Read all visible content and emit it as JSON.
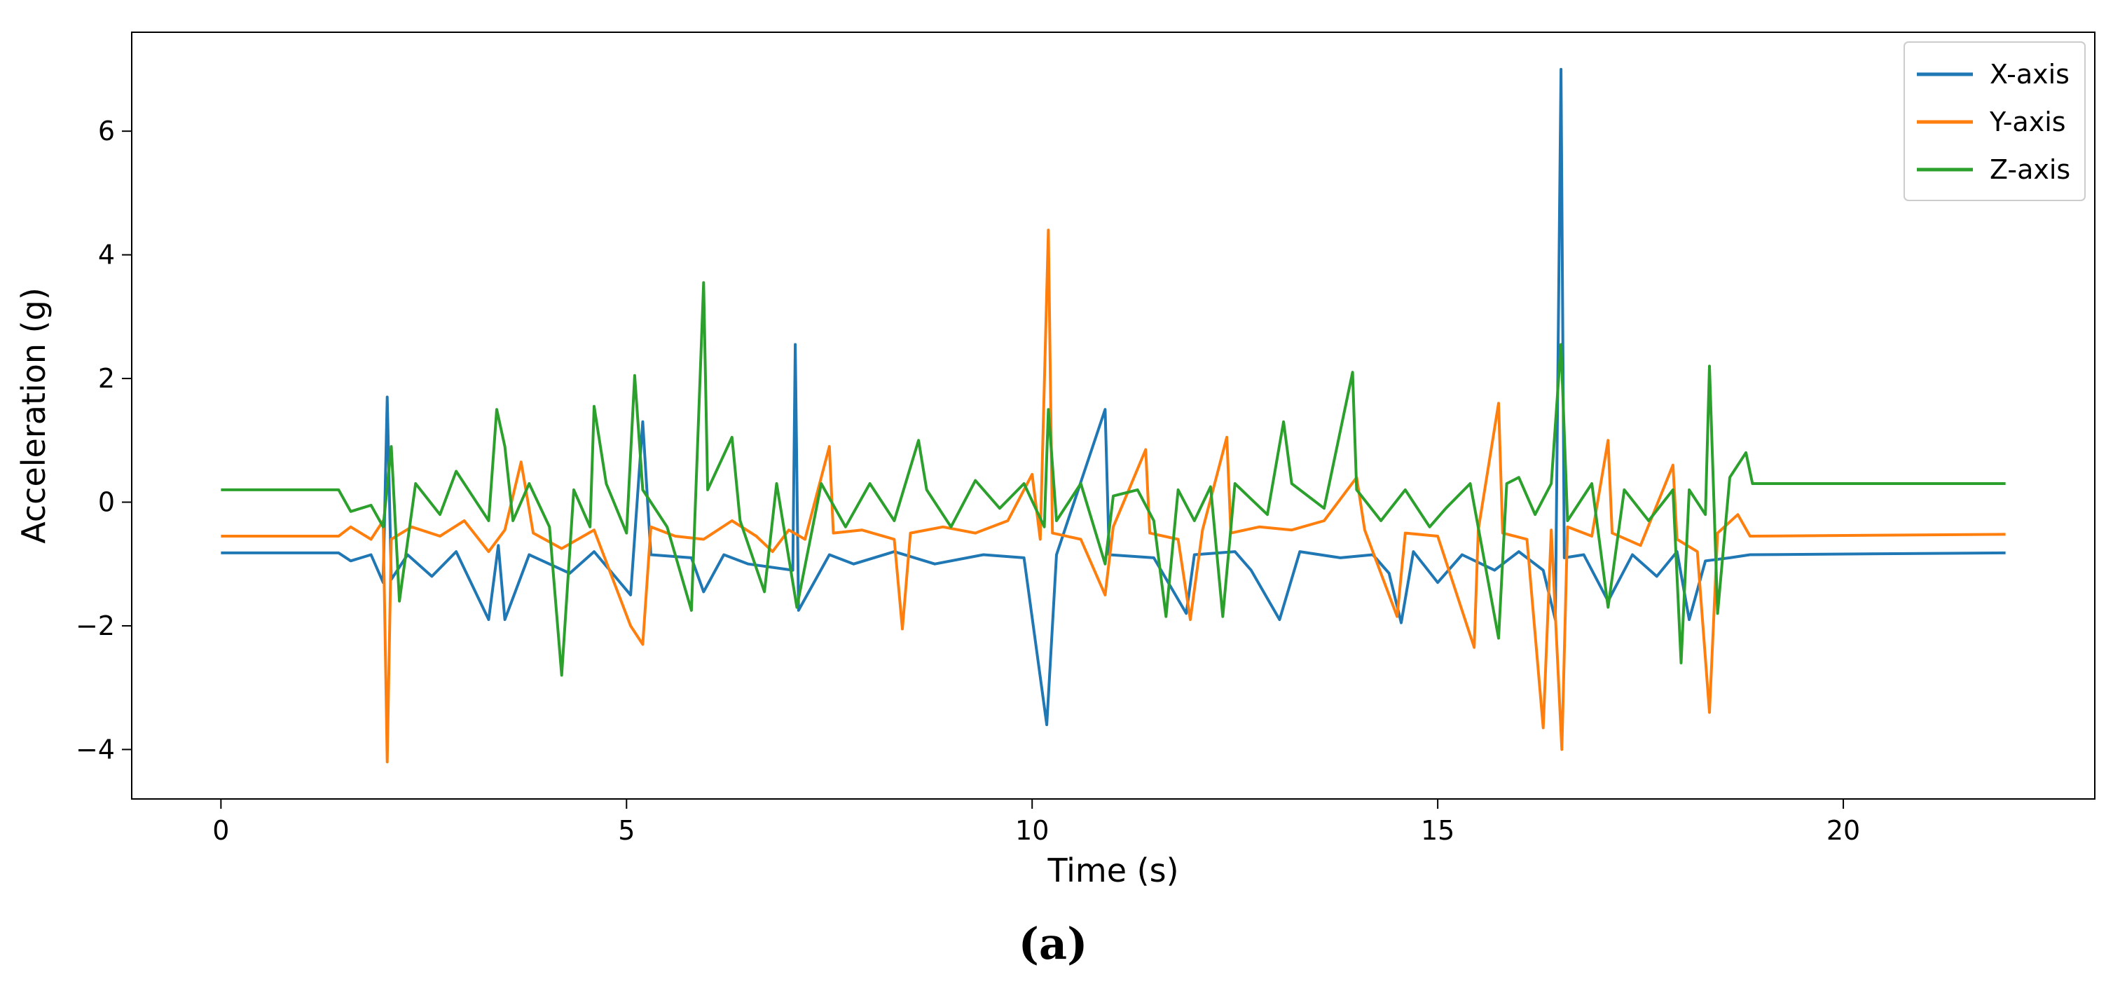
{
  "caption": "(a)",
  "chart_data": {
    "type": "line",
    "title": "",
    "xlabel": "Time (s)",
    "ylabel": "Acceleration (g)",
    "xlim": [
      -1.1,
      23.1
    ],
    "ylim": [
      -4.8,
      7.6
    ],
    "xticks": [
      0,
      5,
      10,
      15,
      20
    ],
    "xtick_labels": [
      "0",
      "5",
      "10",
      "15",
      "20"
    ],
    "yticks": [
      -4,
      -2,
      0,
      2,
      4,
      6
    ],
    "ytick_labels": [
      "−4",
      "−2",
      "0",
      "2",
      "4",
      "6"
    ],
    "grid": false,
    "legend_position": "top-right",
    "series": [
      {
        "name": "X-axis",
        "color": "#1f77b4",
        "points": [
          [
            0,
            -0.82
          ],
          [
            1.45,
            -0.82
          ],
          [
            1.6,
            -0.95
          ],
          [
            1.85,
            -0.85
          ],
          [
            2.0,
            -1.3
          ],
          [
            2.05,
            1.7
          ],
          [
            2.1,
            -1.25
          ],
          [
            2.3,
            -0.85
          ],
          [
            2.6,
            -1.2
          ],
          [
            2.9,
            -0.8
          ],
          [
            3.3,
            -1.9
          ],
          [
            3.42,
            -0.7
          ],
          [
            3.5,
            -1.9
          ],
          [
            3.8,
            -0.85
          ],
          [
            4.3,
            -1.15
          ],
          [
            4.6,
            -0.8
          ],
          [
            5.05,
            -1.5
          ],
          [
            5.2,
            1.3
          ],
          [
            5.3,
            -0.85
          ],
          [
            5.8,
            -0.9
          ],
          [
            5.95,
            -1.45
          ],
          [
            6.2,
            -0.85
          ],
          [
            6.5,
            -1.0
          ],
          [
            7.05,
            -1.1
          ],
          [
            7.08,
            2.55
          ],
          [
            7.12,
            -1.75
          ],
          [
            7.5,
            -0.85
          ],
          [
            7.8,
            -1.0
          ],
          [
            8.3,
            -0.8
          ],
          [
            8.8,
            -1.0
          ],
          [
            9.4,
            -0.85
          ],
          [
            9.9,
            -0.9
          ],
          [
            10.18,
            -3.6
          ],
          [
            10.3,
            -0.85
          ],
          [
            10.9,
            1.5
          ],
          [
            10.95,
            -0.85
          ],
          [
            11.5,
            -0.9
          ],
          [
            11.9,
            -1.8
          ],
          [
            12.0,
            -0.85
          ],
          [
            12.5,
            -0.8
          ],
          [
            12.7,
            -1.1
          ],
          [
            13.05,
            -1.9
          ],
          [
            13.3,
            -0.8
          ],
          [
            13.8,
            -0.9
          ],
          [
            14.2,
            -0.85
          ],
          [
            14.4,
            -1.15
          ],
          [
            14.55,
            -1.95
          ],
          [
            14.7,
            -0.8
          ],
          [
            15.0,
            -1.3
          ],
          [
            15.3,
            -0.85
          ],
          [
            15.7,
            -1.1
          ],
          [
            16.0,
            -0.8
          ],
          [
            16.3,
            -1.1
          ],
          [
            16.45,
            -1.9
          ],
          [
            16.52,
            7.0
          ],
          [
            16.56,
            -0.9
          ],
          [
            16.8,
            -0.85
          ],
          [
            17.1,
            -1.6
          ],
          [
            17.4,
            -0.85
          ],
          [
            17.7,
            -1.2
          ],
          [
            17.95,
            -0.8
          ],
          [
            18.1,
            -1.9
          ],
          [
            18.3,
            -0.95
          ],
          [
            18.6,
            -0.9
          ],
          [
            18.85,
            -0.85
          ],
          [
            22,
            -0.82
          ]
        ]
      },
      {
        "name": "Y-axis",
        "color": "#ff7f0e",
        "points": [
          [
            0,
            -0.55
          ],
          [
            1.45,
            -0.55
          ],
          [
            1.6,
            -0.4
          ],
          [
            1.85,
            -0.6
          ],
          [
            2.0,
            -0.3
          ],
          [
            2.05,
            -4.2
          ],
          [
            2.1,
            -0.6
          ],
          [
            2.35,
            -0.4
          ],
          [
            2.7,
            -0.55
          ],
          [
            3.0,
            -0.3
          ],
          [
            3.3,
            -0.8
          ],
          [
            3.5,
            -0.45
          ],
          [
            3.7,
            0.65
          ],
          [
            3.85,
            -0.5
          ],
          [
            4.2,
            -0.75
          ],
          [
            4.6,
            -0.45
          ],
          [
            5.05,
            -2.0
          ],
          [
            5.2,
            -2.3
          ],
          [
            5.3,
            -0.4
          ],
          [
            5.6,
            -0.55
          ],
          [
            5.95,
            -0.6
          ],
          [
            6.3,
            -0.3
          ],
          [
            6.6,
            -0.55
          ],
          [
            6.8,
            -0.8
          ],
          [
            7.0,
            -0.45
          ],
          [
            7.2,
            -0.6
          ],
          [
            7.5,
            0.9
          ],
          [
            7.55,
            -0.5
          ],
          [
            7.9,
            -0.45
          ],
          [
            8.3,
            -0.6
          ],
          [
            8.4,
            -2.05
          ],
          [
            8.5,
            -0.5
          ],
          [
            8.9,
            -0.4
          ],
          [
            9.3,
            -0.5
          ],
          [
            9.7,
            -0.3
          ],
          [
            10.0,
            0.45
          ],
          [
            10.1,
            -0.6
          ],
          [
            10.2,
            4.4
          ],
          [
            10.25,
            -0.5
          ],
          [
            10.6,
            -0.6
          ],
          [
            10.9,
            -1.5
          ],
          [
            11.0,
            -0.4
          ],
          [
            11.4,
            0.85
          ],
          [
            11.45,
            -0.5
          ],
          [
            11.8,
            -0.6
          ],
          [
            11.95,
            -1.9
          ],
          [
            12.1,
            -0.45
          ],
          [
            12.4,
            1.05
          ],
          [
            12.45,
            -0.5
          ],
          [
            12.8,
            -0.4
          ],
          [
            13.2,
            -0.45
          ],
          [
            13.6,
            -0.3
          ],
          [
            14.0,
            0.4
          ],
          [
            14.1,
            -0.45
          ],
          [
            14.5,
            -1.85
          ],
          [
            14.6,
            -0.5
          ],
          [
            15.0,
            -0.55
          ],
          [
            15.45,
            -2.35
          ],
          [
            15.5,
            -0.45
          ],
          [
            15.75,
            1.6
          ],
          [
            15.8,
            -0.5
          ],
          [
            16.1,
            -0.6
          ],
          [
            16.3,
            -3.65
          ],
          [
            16.4,
            -0.45
          ],
          [
            16.53,
            -4.0
          ],
          [
            16.6,
            -0.4
          ],
          [
            16.9,
            -0.55
          ],
          [
            17.1,
            1.0
          ],
          [
            17.15,
            -0.5
          ],
          [
            17.5,
            -0.7
          ],
          [
            17.9,
            0.6
          ],
          [
            17.95,
            -0.6
          ],
          [
            18.2,
            -0.8
          ],
          [
            18.35,
            -3.4
          ],
          [
            18.45,
            -0.5
          ],
          [
            18.7,
            -0.2
          ],
          [
            18.85,
            -0.55
          ],
          [
            22,
            -0.52
          ]
        ]
      },
      {
        "name": "Z-axis",
        "color": "#2ca02c",
        "points": [
          [
            0,
            0.2
          ],
          [
            1.45,
            0.2
          ],
          [
            1.6,
            -0.15
          ],
          [
            1.85,
            -0.05
          ],
          [
            2.0,
            -0.4
          ],
          [
            2.1,
            0.9
          ],
          [
            2.2,
            -1.6
          ],
          [
            2.4,
            0.3
          ],
          [
            2.7,
            -0.2
          ],
          [
            2.9,
            0.5
          ],
          [
            3.1,
            0.1
          ],
          [
            3.3,
            -0.3
          ],
          [
            3.4,
            1.5
          ],
          [
            3.5,
            0.9
          ],
          [
            3.6,
            -0.3
          ],
          [
            3.8,
            0.3
          ],
          [
            4.05,
            -0.4
          ],
          [
            4.2,
            -2.8
          ],
          [
            4.35,
            0.2
          ],
          [
            4.55,
            -0.4
          ],
          [
            4.6,
            1.55
          ],
          [
            4.75,
            0.3
          ],
          [
            5.0,
            -0.5
          ],
          [
            5.1,
            2.05
          ],
          [
            5.2,
            0.2
          ],
          [
            5.5,
            -0.4
          ],
          [
            5.8,
            -1.75
          ],
          [
            5.95,
            3.55
          ],
          [
            6.0,
            0.2
          ],
          [
            6.3,
            1.05
          ],
          [
            6.4,
            -0.3
          ],
          [
            6.7,
            -1.45
          ],
          [
            6.85,
            0.3
          ],
          [
            7.1,
            -1.7
          ],
          [
            7.4,
            0.3
          ],
          [
            7.7,
            -0.4
          ],
          [
            8.0,
            0.3
          ],
          [
            8.3,
            -0.3
          ],
          [
            8.6,
            1.0
          ],
          [
            8.7,
            0.2
          ],
          [
            9.0,
            -0.4
          ],
          [
            9.3,
            0.35
          ],
          [
            9.6,
            -0.1
          ],
          [
            9.9,
            0.3
          ],
          [
            10.15,
            -0.4
          ],
          [
            10.2,
            1.5
          ],
          [
            10.3,
            -0.3
          ],
          [
            10.6,
            0.3
          ],
          [
            10.9,
            -1.0
          ],
          [
            11.0,
            0.1
          ],
          [
            11.3,
            0.2
          ],
          [
            11.5,
            -0.3
          ],
          [
            11.65,
            -1.85
          ],
          [
            11.8,
            0.2
          ],
          [
            12.0,
            -0.3
          ],
          [
            12.2,
            0.25
          ],
          [
            12.35,
            -1.85
          ],
          [
            12.5,
            0.3
          ],
          [
            12.9,
            -0.2
          ],
          [
            13.1,
            1.3
          ],
          [
            13.2,
            0.3
          ],
          [
            13.6,
            -0.1
          ],
          [
            13.95,
            2.1
          ],
          [
            14.0,
            0.2
          ],
          [
            14.3,
            -0.3
          ],
          [
            14.6,
            0.2
          ],
          [
            14.9,
            -0.4
          ],
          [
            15.1,
            -0.1
          ],
          [
            15.4,
            0.3
          ],
          [
            15.75,
            -2.2
          ],
          [
            15.85,
            0.3
          ],
          [
            16.0,
            0.4
          ],
          [
            16.2,
            -0.2
          ],
          [
            16.4,
            0.3
          ],
          [
            16.52,
            2.55
          ],
          [
            16.6,
            -0.3
          ],
          [
            16.9,
            0.3
          ],
          [
            17.1,
            -1.7
          ],
          [
            17.3,
            0.2
          ],
          [
            17.6,
            -0.3
          ],
          [
            17.9,
            0.2
          ],
          [
            18.0,
            -2.6
          ],
          [
            18.1,
            0.2
          ],
          [
            18.3,
            -0.2
          ],
          [
            18.35,
            2.2
          ],
          [
            18.45,
            -1.8
          ],
          [
            18.6,
            0.4
          ],
          [
            18.8,
            0.8
          ],
          [
            18.88,
            0.3
          ],
          [
            22,
            0.3
          ]
        ]
      }
    ]
  }
}
